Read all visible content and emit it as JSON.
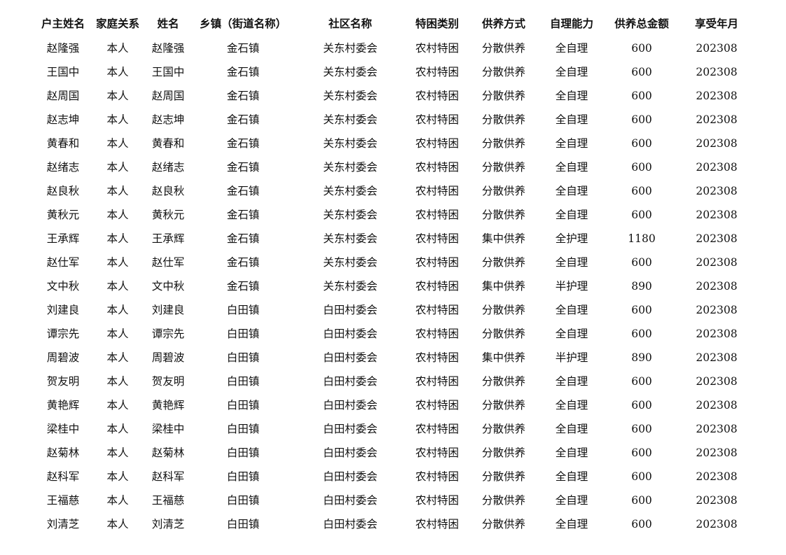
{
  "headers": [
    "户主姓名",
    "家庭关系",
    "姓名",
    "乡镇（街道名称）",
    "社区名称",
    "特困类别",
    "供养方式",
    "自理能力",
    "供养总金额",
    "享受年月"
  ],
  "rows": [
    [
      "赵隆强",
      "本人",
      "赵隆强",
      "金石镇",
      "关东村委会",
      "农村特困",
      "分散供养",
      "全自理",
      "600",
      "202308"
    ],
    [
      "王国中",
      "本人",
      "王国中",
      "金石镇",
      "关东村委会",
      "农村特困",
      "分散供养",
      "全自理",
      "600",
      "202308"
    ],
    [
      "赵周国",
      "本人",
      "赵周国",
      "金石镇",
      "关东村委会",
      "农村特困",
      "分散供养",
      "全自理",
      "600",
      "202308"
    ],
    [
      "赵志坤",
      "本人",
      "赵志坤",
      "金石镇",
      "关东村委会",
      "农村特困",
      "分散供养",
      "全自理",
      "600",
      "202308"
    ],
    [
      "黄春和",
      "本人",
      "黄春和",
      "金石镇",
      "关东村委会",
      "农村特困",
      "分散供养",
      "全自理",
      "600",
      "202308"
    ],
    [
      "赵绪志",
      "本人",
      "赵绪志",
      "金石镇",
      "关东村委会",
      "农村特困",
      "分散供养",
      "全自理",
      "600",
      "202308"
    ],
    [
      "赵良秋",
      "本人",
      "赵良秋",
      "金石镇",
      "关东村委会",
      "农村特困",
      "分散供养",
      "全自理",
      "600",
      "202308"
    ],
    [
      "黄秋元",
      "本人",
      "黄秋元",
      "金石镇",
      "关东村委会",
      "农村特困",
      "分散供养",
      "全自理",
      "600",
      "202308"
    ],
    [
      "王承辉",
      "本人",
      "王承辉",
      "金石镇",
      "关东村委会",
      "农村特困",
      "集中供养",
      "全护理",
      "1180",
      "202308"
    ],
    [
      "赵仕军",
      "本人",
      "赵仕军",
      "金石镇",
      "关东村委会",
      "农村特困",
      "分散供养",
      "全自理",
      "600",
      "202308"
    ],
    [
      "文中秋",
      "本人",
      "文中秋",
      "金石镇",
      "关东村委会",
      "农村特困",
      "集中供养",
      "半护理",
      "890",
      "202308"
    ],
    [
      "刘建良",
      "本人",
      "刘建良",
      "白田镇",
      "白田村委会",
      "农村特困",
      "分散供养",
      "全自理",
      "600",
      "202308"
    ],
    [
      "谭宗先",
      "本人",
      "谭宗先",
      "白田镇",
      "白田村委会",
      "农村特困",
      "分散供养",
      "全自理",
      "600",
      "202308"
    ],
    [
      "周碧波",
      "本人",
      "周碧波",
      "白田镇",
      "白田村委会",
      "农村特困",
      "集中供养",
      "半护理",
      "890",
      "202308"
    ],
    [
      "贺友明",
      "本人",
      "贺友明",
      "白田镇",
      "白田村委会",
      "农村特困",
      "分散供养",
      "全自理",
      "600",
      "202308"
    ],
    [
      "黄艳辉",
      "本人",
      "黄艳辉",
      "白田镇",
      "白田村委会",
      "农村特困",
      "分散供养",
      "全自理",
      "600",
      "202308"
    ],
    [
      "梁桂中",
      "本人",
      "梁桂中",
      "白田镇",
      "白田村委会",
      "农村特困",
      "分散供养",
      "全自理",
      "600",
      "202308"
    ],
    [
      "赵菊林",
      "本人",
      "赵菊林",
      "白田镇",
      "白田村委会",
      "农村特困",
      "分散供养",
      "全自理",
      "600",
      "202308"
    ],
    [
      "赵科军",
      "本人",
      "赵科军",
      "白田镇",
      "白田村委会",
      "农村特困",
      "分散供养",
      "全自理",
      "600",
      "202308"
    ],
    [
      "王福慈",
      "本人",
      "王福慈",
      "白田镇",
      "白田村委会",
      "农村特困",
      "分散供养",
      "全自理",
      "600",
      "202308"
    ],
    [
      "刘清芝",
      "本人",
      "刘清芝",
      "白田镇",
      "白田村委会",
      "农村特困",
      "分散供养",
      "全自理",
      "600",
      "202308"
    ]
  ]
}
